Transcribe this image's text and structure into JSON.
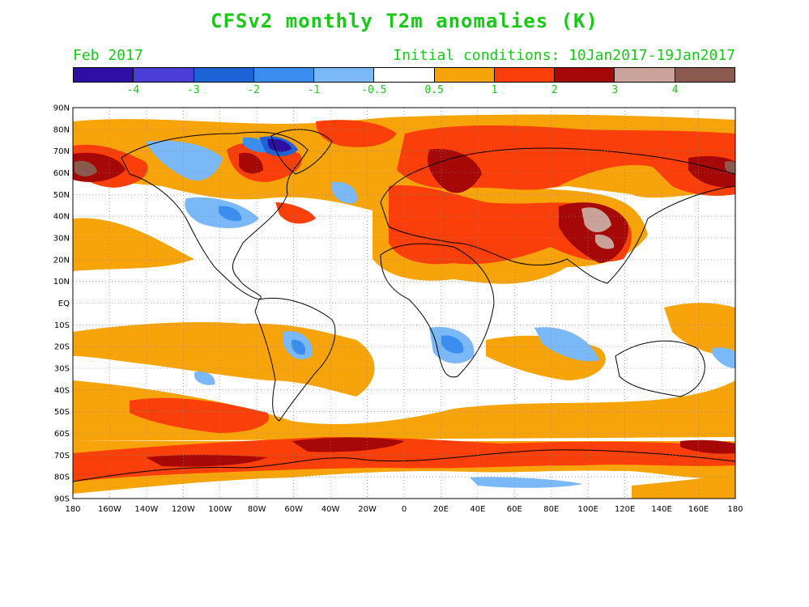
{
  "title": "CFSv2 monthly T2m anomalies (K)",
  "valid_month": "Feb 2017",
  "initial_conditions": "Initial conditions: 10Jan2017-19Jan2017",
  "colorbar": {
    "colors": [
      "#2e0fa3",
      "#4a3ed6",
      "#1d63d6",
      "#3a8ef0",
      "#7ab8f7",
      "#ffffff",
      "#f7a40a",
      "#fa3f0a",
      "#a60808",
      "#c9a29a",
      "#8a5a4e"
    ],
    "labels": [
      "-4",
      "-3",
      "-2",
      "-1",
      "-0.5",
      "0.5",
      "1",
      "2",
      "3",
      "4"
    ]
  },
  "map": {
    "lat_labels": [
      "90N",
      "80N",
      "70N",
      "60N",
      "50N",
      "40N",
      "30N",
      "20N",
      "10N",
      "EQ",
      "10S",
      "20S",
      "30S",
      "40S",
      "50S",
      "60S",
      "70S",
      "80S",
      "90S"
    ],
    "lon_labels": [
      "180",
      "160W",
      "140W",
      "120W",
      "100W",
      "80W",
      "60W",
      "40W",
      "20W",
      "0",
      "20E",
      "40E",
      "60E",
      "80E",
      "100E",
      "120E",
      "140E",
      "160E",
      "180"
    ]
  }
}
